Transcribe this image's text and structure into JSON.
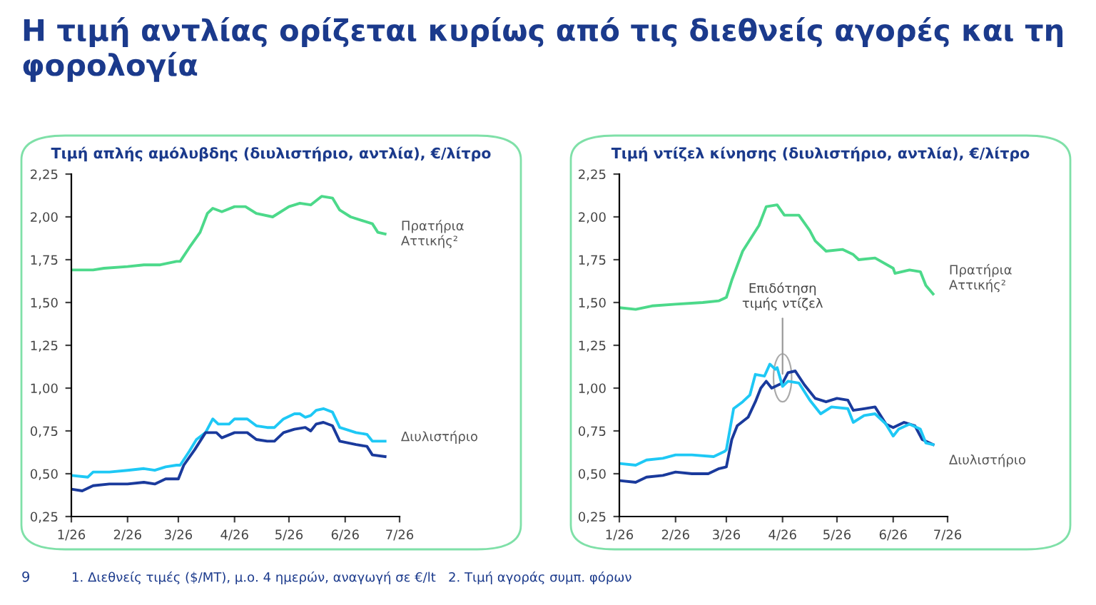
{
  "chart_data": [
    {
      "type": "line",
      "title": "Τιμή απλής αμόλυβδης (διυλιστήριο, αντλία), €/λίτρο",
      "annotations": [
        "Η τιμή αντλίας ορίζεται κυρίως από τις διεθνείς αγορές και τη φορολογία",
        "9",
        "1. Διεθνείς τιμές ($/MT), μ.ο. 4 ημερών, αναγωγή σε €/lt   2. Τιμή αγοράς συμπ. φόρων"
      ],
      "xlim": [
        "2026-01-01",
        "2026-07-01"
      ],
      "xticks": [
        {
          "value": "2026-01",
          "label": "1/26"
        },
        {
          "value": "2026-02",
          "label": "2/26"
        },
        {
          "value": "2026-03",
          "label": "3/26"
        },
        {
          "value": "2026-04",
          "label": "4/26"
        },
        {
          "value": "2026-05",
          "label": "5/26"
        },
        {
          "value": "2026-06",
          "label": "6/26"
        },
        {
          "value": "2026-07",
          "label": "7/26"
        }
      ],
      "ylim": [
        0.25,
        2.25
      ],
      "yticks": [
        {
          "value": 0.25,
          "label": "0,25"
        },
        {
          "value": 0.5,
          "label": "0,50"
        },
        {
          "value": 0.75,
          "label": "0,75"
        },
        {
          "value": 1.0,
          "label": "1,00"
        },
        {
          "value": 1.25,
          "label": "1,25"
        },
        {
          "value": 1.5,
          "label": "1,50"
        },
        {
          "value": 1.75,
          "label": "1,75"
        },
        {
          "value": 2.0,
          "label": "2,00"
        },
        {
          "value": 2.25,
          "label": "2,25"
        }
      ],
      "series": [
        {
          "name": "Πρατήρια Αττικής²",
          "color": "#4cd98a",
          "x": [
            "2026-01-01",
            "2026-01-13",
            "2026-01-19",
            "2026-02-01",
            "2026-02-10",
            "2026-02-19",
            "2026-02-28",
            "2026-03-02",
            "2026-03-07",
            "2026-03-13",
            "2026-03-17",
            "2026-03-20",
            "2026-03-25",
            "2026-04-01",
            "2026-04-07",
            "2026-04-13",
            "2026-04-22",
            "2026-05-01",
            "2026-05-07",
            "2026-05-13",
            "2026-05-19",
            "2026-05-25",
            "2026-05-29",
            "2026-06-04",
            "2026-06-10",
            "2026-06-16",
            "2026-06-19",
            "2026-06-23"
          ],
          "values": [
            1.69,
            1.69,
            1.7,
            1.71,
            1.72,
            1.72,
            1.74,
            1.74,
            1.82,
            1.91,
            2.02,
            2.05,
            2.03,
            2.06,
            2.06,
            2.02,
            2.0,
            2.06,
            2.08,
            2.07,
            2.12,
            2.11,
            2.04,
            2.0,
            1.98,
            1.96,
            1.91,
            1.9
          ]
        },
        {
          "name": "Διυλιστήριο",
          "color": "#1ec8f5",
          "x": [
            "2026-01-01",
            "2026-01-10",
            "2026-01-13",
            "2026-01-22",
            "2026-02-01",
            "2026-02-10",
            "2026-02-16",
            "2026-02-22",
            "2026-02-28",
            "2026-03-02",
            "2026-03-07",
            "2026-03-11",
            "2026-03-16",
            "2026-03-20",
            "2026-03-23",
            "2026-03-29",
            "2026-04-01",
            "2026-04-08",
            "2026-04-13",
            "2026-04-19",
            "2026-04-23",
            "2026-04-28",
            "2026-05-04",
            "2026-05-07",
            "2026-05-10",
            "2026-05-13",
            "2026-05-16",
            "2026-05-20",
            "2026-05-25",
            "2026-05-29",
            "2026-06-07",
            "2026-06-13",
            "2026-06-16",
            "2026-06-23"
          ],
          "values": [
            0.49,
            0.48,
            0.51,
            0.51,
            0.52,
            0.53,
            0.52,
            0.54,
            0.55,
            0.55,
            0.63,
            0.7,
            0.74,
            0.82,
            0.79,
            0.79,
            0.82,
            0.82,
            0.78,
            0.77,
            0.77,
            0.82,
            0.85,
            0.85,
            0.83,
            0.84,
            0.87,
            0.88,
            0.86,
            0.77,
            0.74,
            0.73,
            0.69,
            0.69
          ]
        },
        {
          "color": "#1a3a9c",
          "x": [
            "2026-01-01",
            "2026-01-07",
            "2026-01-13",
            "2026-01-22",
            "2026-02-01",
            "2026-02-10",
            "2026-02-16",
            "2026-02-22",
            "2026-03-01",
            "2026-03-04",
            "2026-03-10",
            "2026-03-16",
            "2026-03-22",
            "2026-03-25",
            "2026-04-01",
            "2026-04-08",
            "2026-04-13",
            "2026-04-19",
            "2026-04-23",
            "2026-04-28",
            "2026-05-04",
            "2026-05-10",
            "2026-05-13",
            "2026-05-16",
            "2026-05-20",
            "2026-05-25",
            "2026-05-29",
            "2026-06-07",
            "2026-06-13",
            "2026-06-16",
            "2026-06-23"
          ],
          "values": [
            0.41,
            0.4,
            0.43,
            0.44,
            0.44,
            0.45,
            0.44,
            0.47,
            0.47,
            0.55,
            0.64,
            0.74,
            0.74,
            0.71,
            0.74,
            0.74,
            0.7,
            0.69,
            0.69,
            0.74,
            0.76,
            0.77,
            0.75,
            0.79,
            0.8,
            0.78,
            0.69,
            0.67,
            0.66,
            0.61,
            0.6
          ]
        }
      ]
    },
    {
      "type": "line",
      "title": "Τιμή ντίζελ κίνησης (διυλιστήριο, αντλία), €/λίτρο",
      "annotations": [
        {
          "text": "Επιδότηση τιμής ντίζελ",
          "x": "2026-04-01",
          "y": 1.06
        }
      ],
      "xlim": [
        "2026-01-01",
        "2026-07-01"
      ],
      "xticks": [
        {
          "value": "2026-01",
          "label": "1/26"
        },
        {
          "value": "2026-02",
          "label": "2/26"
        },
        {
          "value": "2026-03",
          "label": "3/26"
        },
        {
          "value": "2026-04",
          "label": "4/26"
        },
        {
          "value": "2026-05",
          "label": "5/26"
        },
        {
          "value": "2026-06",
          "label": "6/26"
        },
        {
          "value": "2026-07",
          "label": "7/26"
        }
      ],
      "ylim": [
        0.25,
        2.25
      ],
      "yticks": [
        {
          "value": 0.25,
          "label": "0,25"
        },
        {
          "value": 0.5,
          "label": "0,50"
        },
        {
          "value": 0.75,
          "label": "0,75"
        },
        {
          "value": 1.0,
          "label": "1,00"
        },
        {
          "value": 1.25,
          "label": "1,25"
        },
        {
          "value": 1.5,
          "label": "1,50"
        },
        {
          "value": 1.75,
          "label": "1,75"
        },
        {
          "value": 2.0,
          "label": "2,00"
        },
        {
          "value": 2.25,
          "label": "2,25"
        }
      ],
      "series": [
        {
          "name": "Πρατήρια Αττικής²",
          "color": "#4cd98a",
          "x": [
            "2026-01-01",
            "2026-01-10",
            "2026-01-19",
            "2026-02-01",
            "2026-02-16",
            "2026-02-25",
            "2026-03-01",
            "2026-03-04",
            "2026-03-10",
            "2026-03-13",
            "2026-03-19",
            "2026-03-23",
            "2026-03-29",
            "2026-04-02",
            "2026-04-10",
            "2026-04-16",
            "2026-04-19",
            "2026-04-25",
            "2026-05-04",
            "2026-05-10",
            "2026-05-13",
            "2026-05-22",
            "2026-06-01",
            "2026-06-02",
            "2026-06-10",
            "2026-06-16",
            "2026-06-19",
            "2026-06-23"
          ],
          "values": [
            1.47,
            1.46,
            1.48,
            1.49,
            1.5,
            1.51,
            1.53,
            1.63,
            1.8,
            1.85,
            1.95,
            2.06,
            2.07,
            2.01,
            2.01,
            1.92,
            1.86,
            1.8,
            1.81,
            1.78,
            1.75,
            1.76,
            1.7,
            1.67,
            1.69,
            1.68,
            1.6,
            1.55
          ]
        },
        {
          "color": "#1a3a9c",
          "x": [
            "2026-01-01",
            "2026-01-10",
            "2026-01-16",
            "2026-01-25",
            "2026-02-01",
            "2026-02-10",
            "2026-02-19",
            "2026-02-25",
            "2026-03-01",
            "2026-03-04",
            "2026-03-07",
            "2026-03-13",
            "2026-03-17",
            "2026-03-20",
            "2026-03-23",
            "2026-03-26",
            "2026-04-01",
            "2026-04-04",
            "2026-04-08",
            "2026-04-13",
            "2026-04-19",
            "2026-04-25",
            "2026-05-01",
            "2026-05-07",
            "2026-05-10",
            "2026-05-16",
            "2026-05-22",
            "2026-05-28",
            "2026-06-01",
            "2026-06-07",
            "2026-06-13",
            "2026-06-17",
            "2026-06-23"
          ],
          "values": [
            0.46,
            0.45,
            0.48,
            0.49,
            0.51,
            0.5,
            0.5,
            0.53,
            0.54,
            0.7,
            0.78,
            0.83,
            0.92,
            1.0,
            1.04,
            1.0,
            1.03,
            1.09,
            1.1,
            1.02,
            0.94,
            0.92,
            0.94,
            0.93,
            0.87,
            0.88,
            0.89,
            0.79,
            0.77,
            0.8,
            0.78,
            0.7,
            0.67
          ]
        },
        {
          "name": "Διυλιστήριο",
          "color": "#1ec8f5",
          "x": [
            "2026-01-01",
            "2026-01-10",
            "2026-01-16",
            "2026-01-25",
            "2026-02-01",
            "2026-02-10",
            "2026-02-22",
            "2026-02-28",
            "2026-03-01",
            "2026-03-05",
            "2026-03-10",
            "2026-03-14",
            "2026-03-17",
            "2026-03-22",
            "2026-03-25",
            "2026-03-28",
            "2026-03-29",
            "2026-04-01",
            "2026-04-04",
            "2026-04-10",
            "2026-04-16",
            "2026-04-22",
            "2026-04-28",
            "2026-05-07",
            "2026-05-10",
            "2026-05-16",
            "2026-05-22",
            "2026-05-28",
            "2026-06-01",
            "2026-06-04",
            "2026-06-10",
            "2026-06-16",
            "2026-06-19",
            "2026-06-23"
          ],
          "values": [
            0.56,
            0.55,
            0.58,
            0.59,
            0.61,
            0.61,
            0.6,
            0.63,
            0.64,
            0.88,
            0.92,
            0.96,
            1.08,
            1.07,
            1.14,
            1.11,
            1.12,
            1.01,
            1.04,
            1.03,
            0.93,
            0.85,
            0.89,
            0.88,
            0.8,
            0.84,
            0.85,
            0.79,
            0.72,
            0.76,
            0.79,
            0.76,
            0.68,
            0.67
          ]
        }
      ]
    }
  ]
}
